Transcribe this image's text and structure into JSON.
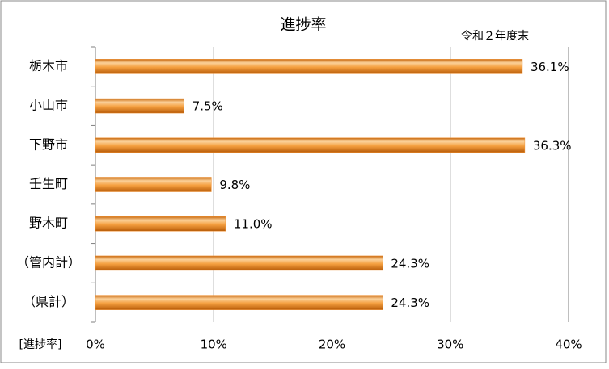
{
  "chart_data": {
    "type": "hbar",
    "title": "進捗率",
    "subtitle": "令和２年度末",
    "xlabel": "[進捗率]",
    "categories": [
      "栃木市",
      "小山市",
      "下野市",
      "壬生町",
      "野木町",
      "（管内計）",
      "（県計）"
    ],
    "values": [
      36.1,
      7.5,
      36.3,
      9.8,
      11.0,
      24.3,
      24.3
    ],
    "value_labels": [
      "36.1%",
      "7.5%",
      "36.3%",
      "9.8%",
      "11.0%",
      "24.3%",
      "24.3%"
    ],
    "color": "#f09030",
    "xlim": [
      0,
      40
    ],
    "xticks": [
      {
        "value": 0,
        "label": "0%"
      },
      {
        "value": 10,
        "label": "10%"
      },
      {
        "value": 20,
        "label": "20%"
      },
      {
        "value": 30,
        "label": "30%"
      },
      {
        "value": 40,
        "label": "40%"
      }
    ],
    "grid": true
  }
}
